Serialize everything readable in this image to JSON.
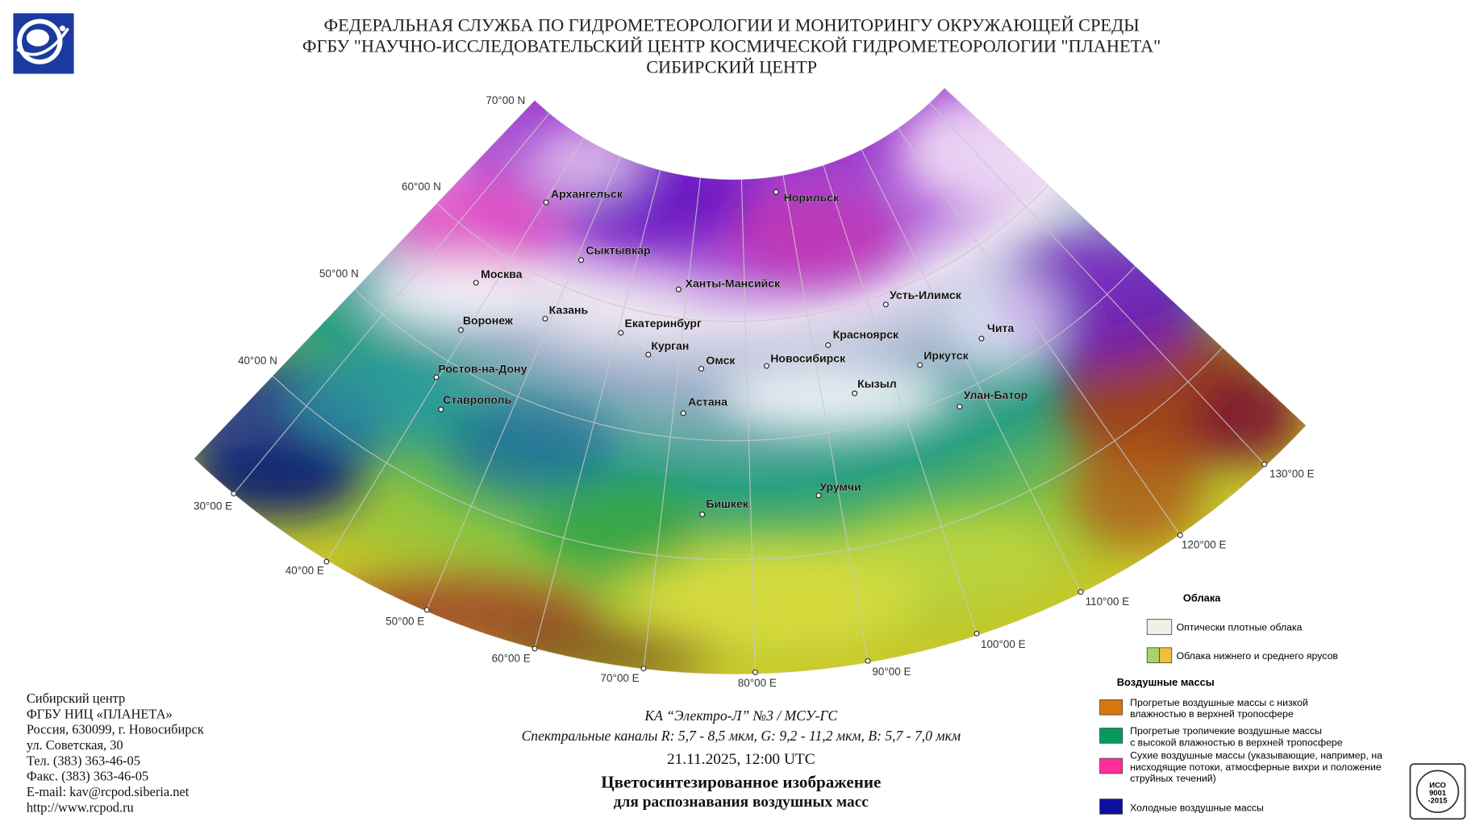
{
  "header": {
    "lines": [
      "ФЕДЕРАЛЬНАЯ СЛУЖБА ПО ГИДРОМЕТЕОРОЛОГИИ И МОНИТОРИНГУ ОКРУЖАЮЩЕЙ СРЕДЫ",
      "ФГБУ \"НАУЧНО-ИССЛЕДОВАТЕЛЬСКИЙ ЦЕНТР КОСМИЧЕСКОЙ ГИДРОМЕТЕОРОЛОГИИ \"ПЛАНЕТА\"",
      "СИБИРСКИЙ ЦЕНТР"
    ]
  },
  "map": {
    "lat_labels": [
      "70°00 N",
      "60°00 N",
      "50°00 N",
      "40°00 N"
    ],
    "lon_labels": [
      "30°00 E",
      "40°00 E",
      "50°00 E",
      "60°00 E",
      "70°00 E",
      "80°00 E",
      "90°00 E",
      "100°00 E",
      "110°00 E",
      "120°00 E",
      "130°00 E"
    ],
    "cities": [
      "Архангельск",
      "Сыктывкар",
      "Москва",
      "Казань",
      "Воронеж",
      "Ханты-Мансийск",
      "Норильск",
      "Екатеринбург",
      "Курган",
      "Омск",
      "Новосибирск",
      "Красноярск",
      "Усть-Илимск",
      "Иркутск",
      "Чита",
      "Кызыл",
      "Улан-Батор",
      "Ростов-на-Дону",
      "Ставрополь",
      "Астана",
      "Урумчи",
      "Бишкек"
    ]
  },
  "legend": {
    "clouds_title": "Облака",
    "clouds": [
      {
        "lines": [
          "Оптически плотные облака"
        ],
        "colors": [
          "#f1f0e4"
        ]
      },
      {
        "lines": [
          "Облака нижнего и среднего ярусов"
        ],
        "colors": [
          "#a9d364",
          "#f0bf3a"
        ]
      }
    ],
    "air_title": "Воздушные массы",
    "air_masses": [
      {
        "lines": [
          "Прогретые воздушные массы с низкой",
          "влажностью в верхней тропосфере"
        ],
        "color": "#d4780e"
      },
      {
        "lines": [
          "Прогретые тропичекие воздушные массы",
          "с высокой влажностью в верхней тропосфере"
        ],
        "color": "#089a5c"
      },
      {
        "lines": [
          "Сухие воздушные массы (указывающие, например, на",
          "нисходящие потоки, атмосферные вихри и положение",
          "струйных течений)"
        ],
        "color": "#ff2e98"
      },
      {
        "lines": [
          "Холодные воздушные массы"
        ],
        "color": "#10109e"
      }
    ]
  },
  "caption": {
    "lines": [
      "КА “Электро-Л” №3 / МСУ-ГС",
      "Спектральные каналы R: 5,7 - 8,5 мкм, G: 9,2 - 11,2 мкм, B: 5,7 - 7,0 мкм",
      "21.11.2025, 12:00 UTC",
      "Цветосинтезированное изображение",
      "для распознавания воздушных масс"
    ]
  },
  "contact": {
    "lines": [
      "Сибирский центр",
      "ФГБУ НИЦ «ПЛАНЕТА»",
      "Россия, 630099, г. Новосибирск",
      "ул. Советская, 30",
      "Тел. (383) 363-46-05",
      "Факс. (383) 363-46-05",
      "E-mail: kav@rcpod.siberia.net",
      "http://www.rcpod.ru"
    ]
  },
  "certificate": {
    "lines": [
      "ИСО",
      "9001",
      "-2015"
    ]
  }
}
